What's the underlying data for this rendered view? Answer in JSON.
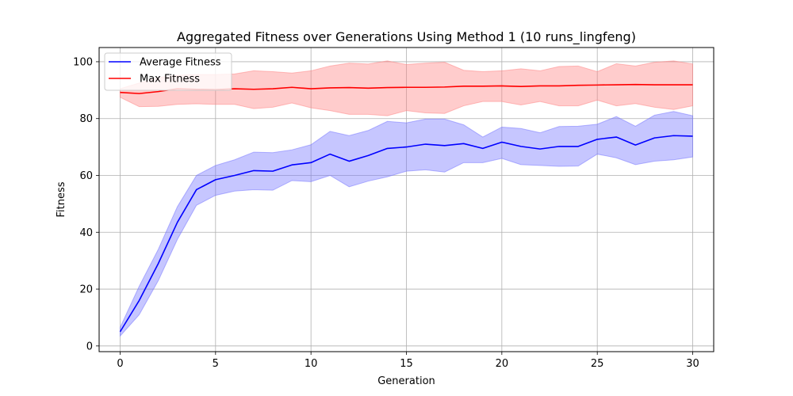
{
  "chart_data": {
    "type": "line",
    "title": "Aggregated Fitness over Generations Using Method 1 (10 runs_lingfeng)",
    "xlabel": "Generation",
    "ylabel": "Fitness",
    "xlim": [
      -1.1,
      31.1
    ],
    "ylim": [
      -2,
      105
    ],
    "xticks": [
      0,
      5,
      10,
      15,
      20,
      25,
      30
    ],
    "yticks": [
      0,
      20,
      40,
      60,
      80,
      100
    ],
    "grid": true,
    "legend_position": "top-left",
    "x": [
      0,
      1,
      2,
      3,
      4,
      5,
      6,
      7,
      8,
      9,
      10,
      11,
      12,
      13,
      14,
      15,
      16,
      17,
      18,
      19,
      20,
      21,
      22,
      23,
      24,
      25,
      26,
      27,
      28,
      29,
      30
    ],
    "series": [
      {
        "name": "Average Fitness",
        "color": "#0000ff",
        "band_color": "#7070ff",
        "values": [
          5,
          16,
          29,
          43.5,
          55,
          58.5,
          60,
          61.7,
          61.5,
          63.7,
          64.5,
          67.5,
          65,
          67,
          69.5,
          70,
          71,
          70.5,
          71.2,
          69.5,
          71.7,
          70.2,
          69.3,
          70.2,
          70.2,
          72.7,
          73.5,
          70.7,
          73.2,
          74,
          73.8
        ],
        "lower": [
          3.5,
          11,
          23,
          37.5,
          49.5,
          53,
          54.5,
          55,
          54.8,
          58.2,
          57.8,
          60,
          56,
          58,
          59.5,
          61.5,
          62,
          61.2,
          64.5,
          64.5,
          66,
          63.8,
          63.5,
          63.2,
          63.3,
          67.5,
          66.2,
          63.8,
          65,
          65.5,
          66.5
        ],
        "upper": [
          6.5,
          21,
          34,
          49,
          60,
          63.5,
          65.5,
          68.2,
          68,
          69,
          70.8,
          75.5,
          74,
          75.8,
          79,
          78.5,
          79.8,
          79.8,
          77.8,
          73.5,
          77,
          76.5,
          75,
          77.2,
          77.3,
          78,
          80.7,
          77.3,
          81.2,
          82.5,
          81
        ]
      },
      {
        "name": "Max Fitness",
        "color": "#ff0000",
        "band_color": "#ff8080",
        "values": [
          89.2,
          88.8,
          89.5,
          90.5,
          90.3,
          90.2,
          90.5,
          90.3,
          90.5,
          91,
          90.5,
          90.8,
          90.9,
          90.7,
          90.9,
          91,
          91,
          91.1,
          91.4,
          91.4,
          91.5,
          91.3,
          91.5,
          91.5,
          91.7,
          91.8,
          91.9,
          92,
          91.9,
          91.9,
          91.9
        ],
        "lower": [
          87.5,
          84.2,
          84.3,
          85,
          85.2,
          85,
          85,
          83.5,
          84,
          85.5,
          83.8,
          82.8,
          81.5,
          81.5,
          81,
          82.8,
          82,
          81.8,
          84.5,
          86,
          86,
          84.8,
          86,
          84.5,
          84.5,
          86.5,
          84.5,
          85.3,
          84,
          83.2,
          84.5
        ],
        "upper": [
          90.5,
          92.5,
          94.5,
          95.2,
          95.5,
          95.5,
          95.7,
          96.8,
          96.5,
          96,
          96.8,
          98.5,
          99.5,
          99.2,
          100.3,
          99,
          99.5,
          99.8,
          97,
          96.5,
          96.8,
          97.5,
          96.8,
          98.3,
          98.5,
          96.5,
          99.3,
          98.5,
          99.8,
          100.3,
          99.2
        ]
      }
    ]
  }
}
